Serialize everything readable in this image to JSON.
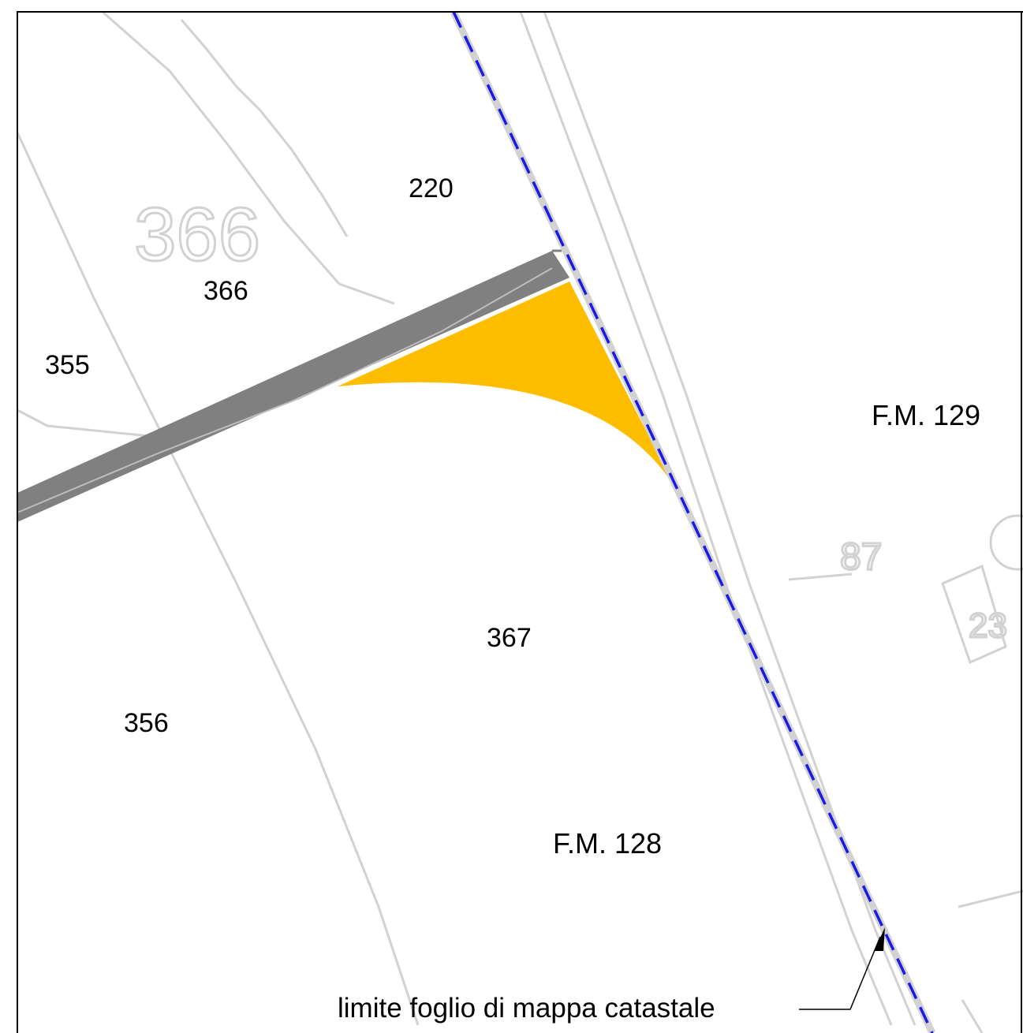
{
  "parcels": [
    {
      "id": "220",
      "label": "220"
    },
    {
      "id": "366",
      "label": "366"
    },
    {
      "id": "355",
      "label": "355"
    },
    {
      "id": "367",
      "label": "367"
    },
    {
      "id": "356",
      "label": "356"
    }
  ],
  "sheets": [
    {
      "id": "fm129",
      "label": "F.M. 129"
    },
    {
      "id": "fm128",
      "label": "F.M. 128"
    }
  ],
  "background_labels": {
    "old_parcel_366": "366",
    "old_parcel_87": "87",
    "old_parcel_23": "23"
  },
  "annotation": {
    "text": "limite foglio di mappa catastale"
  },
  "colors": {
    "frame": "#000000",
    "sheet_boundary": "#1a1ae6",
    "strip": "#808080",
    "highlight": "#ffbd00",
    "base_map_lines": "#d2d2d2"
  }
}
